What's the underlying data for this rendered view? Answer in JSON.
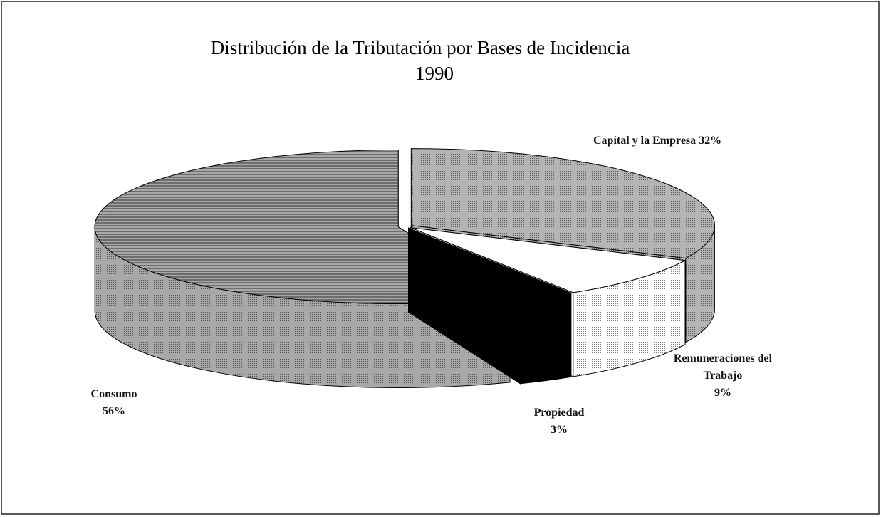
{
  "chart_data": {
    "type": "pie",
    "title": "Distribución de la Tributación por Bases de Incidencia",
    "subtitle": "1990",
    "categories": [
      "Capital y la Empresa",
      "Remuneraciones del Trabajo",
      "Propiedad",
      "Consumo"
    ],
    "values": [
      32,
      9,
      3,
      56
    ],
    "value_labels": [
      "32%",
      "9%",
      "3%",
      "56%"
    ],
    "colors": [
      "#b4b4b4",
      "#ffffff",
      "#000000",
      "#a8a8a8"
    ]
  }
}
